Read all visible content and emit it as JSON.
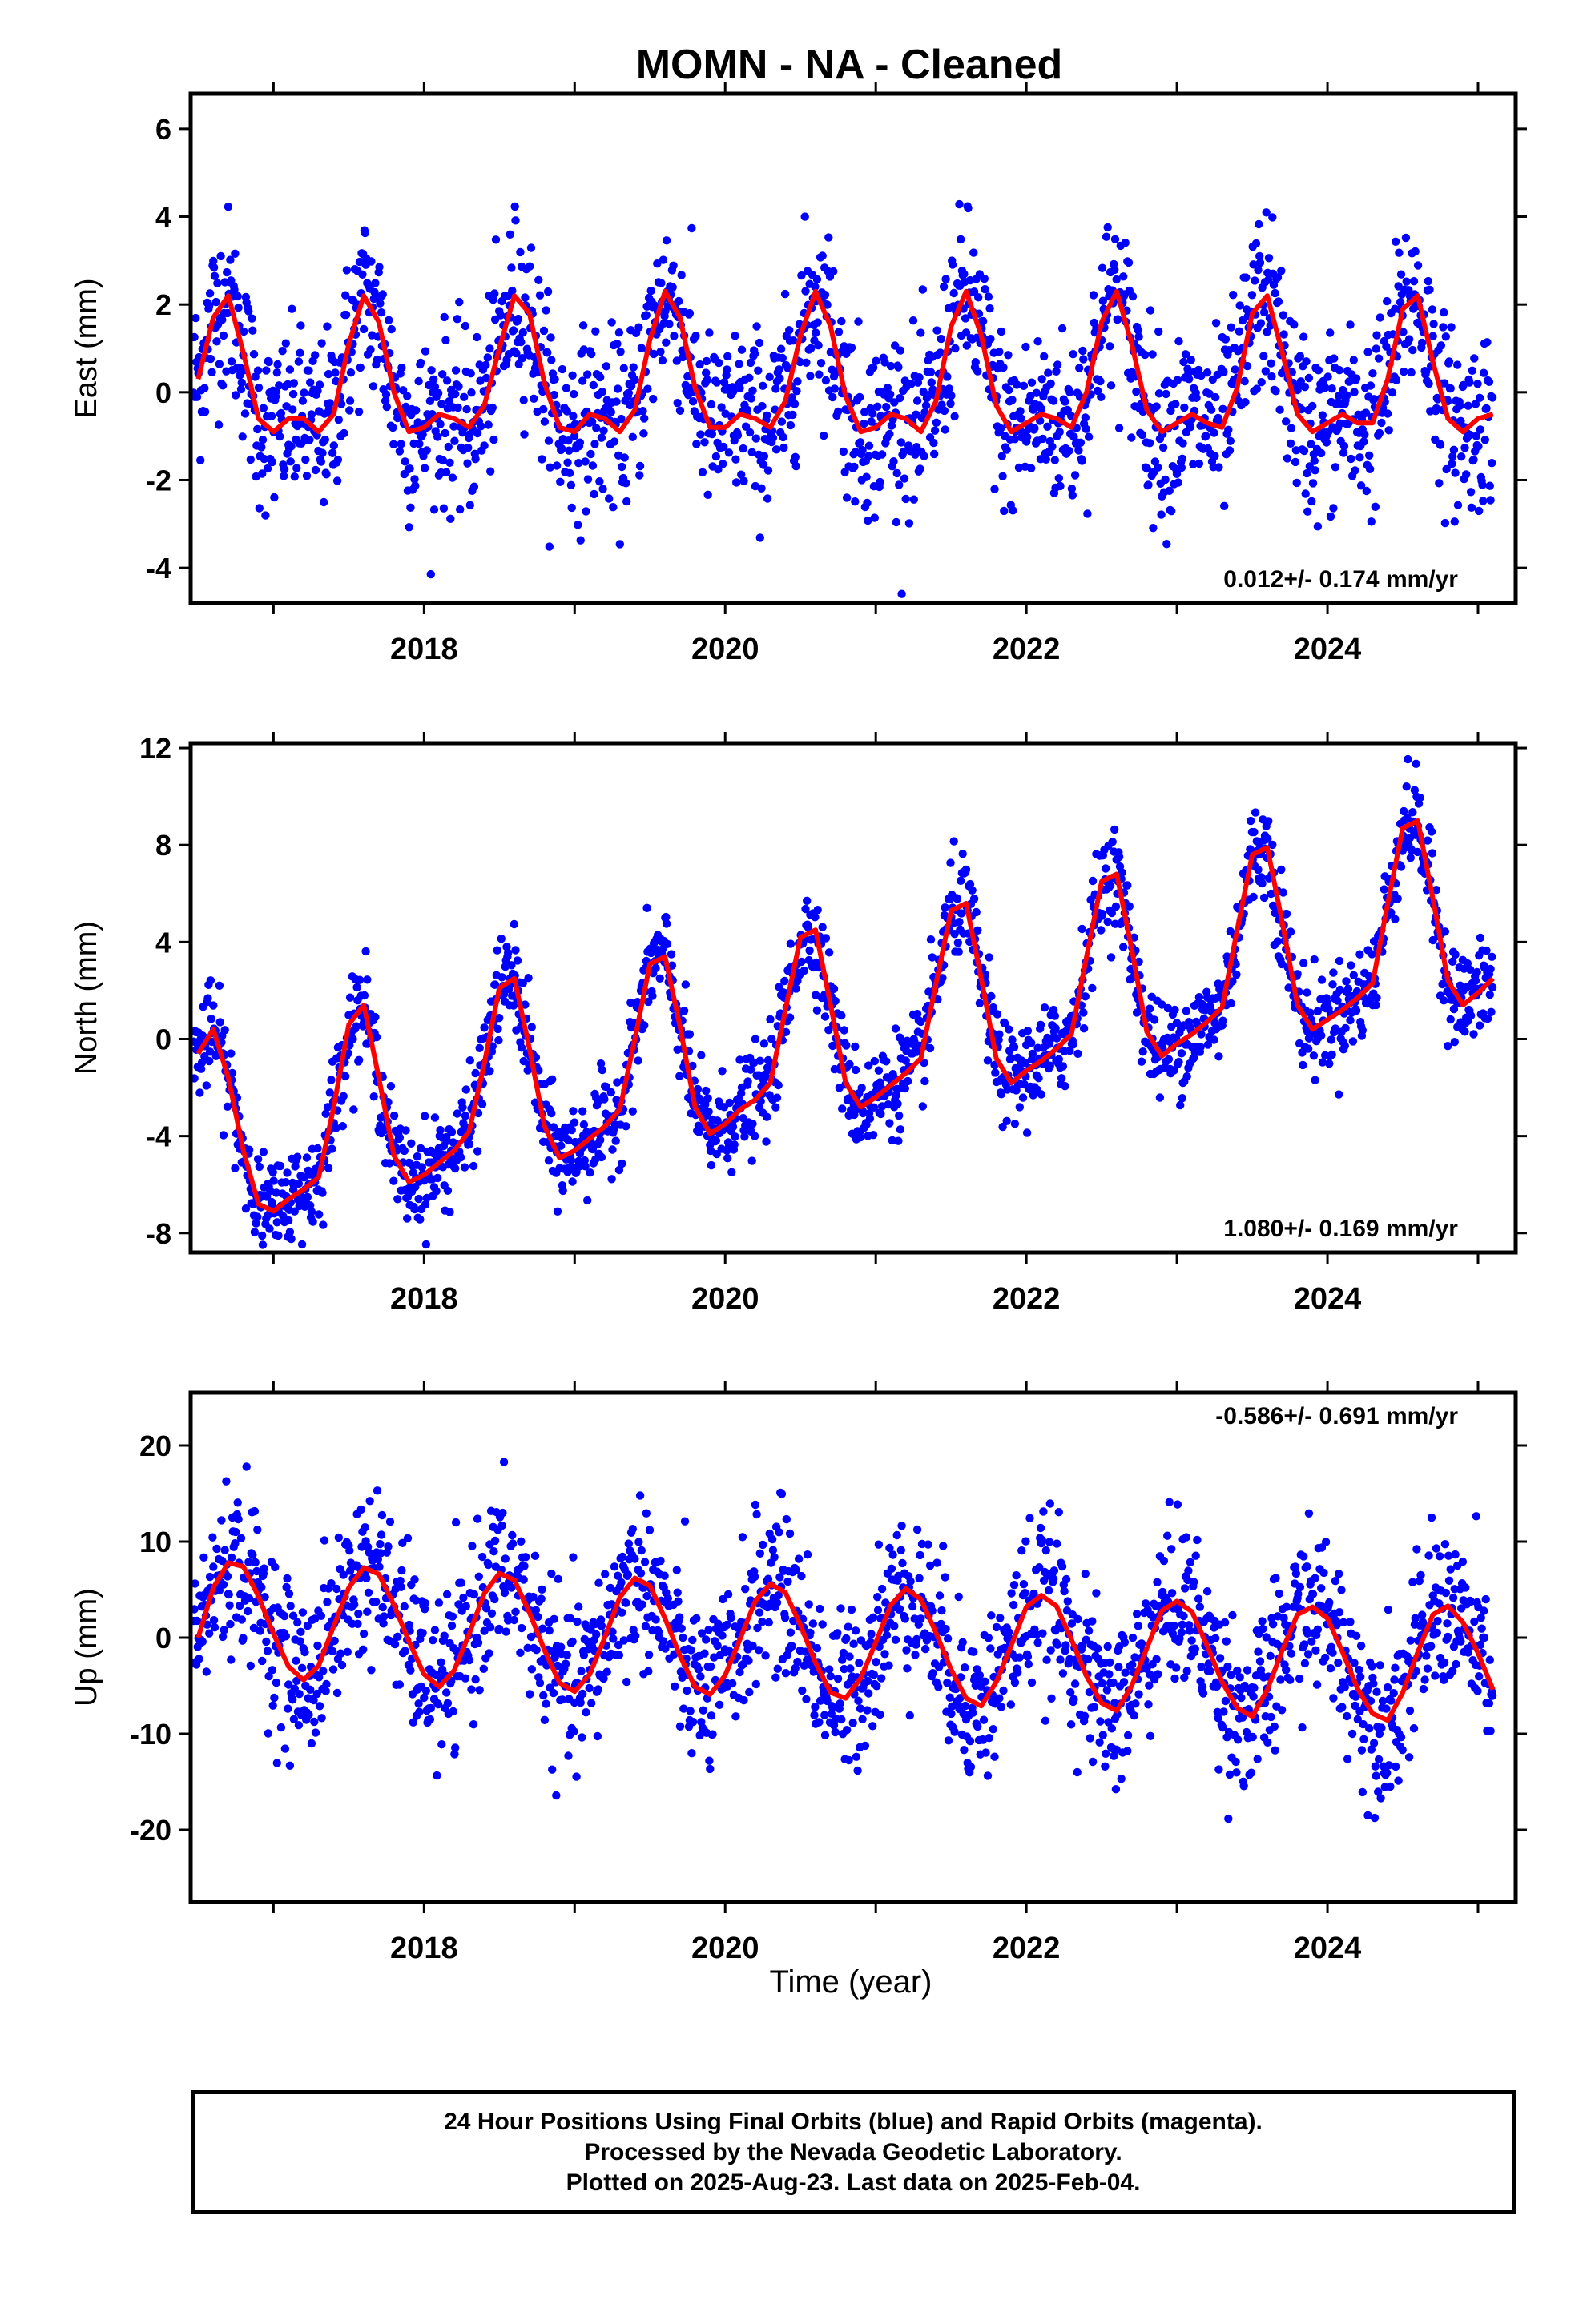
{
  "title": "MOMN  - NA - Cleaned",
  "xlabel": "Time (year)",
  "footer": {
    "line1": "24 Hour Positions Using Final Orbits (blue) and Rapid Orbits (magenta).",
    "line2": "Processed by the Nevada Geodetic Laboratory.",
    "line3": "Plotted on 2025-Aug-23. Last data on 2025-Feb-04."
  },
  "colors": {
    "points": "#0000ff",
    "model": "#ff0000",
    "frame": "#000000"
  },
  "chart_data": [
    {
      "type": "scatter",
      "component": "east",
      "ylabel": "East (mm)",
      "rate_label": "0.012+/- 0.174 mm/yr",
      "xlim": [
        2016.45,
        2025.25
      ],
      "ylim": [
        -4.8,
        6.8
      ],
      "yticks": [
        -4,
        -2,
        0,
        2,
        4,
        6
      ],
      "xticks": [
        "2018",
        "2020",
        "2022",
        "2024"
      ],
      "series": [
        {
          "x": [
            2016.5,
            2016.6,
            2016.7,
            2016.8,
            2016.9,
            2017.0,
            2017.1,
            2017.2,
            2017.3,
            2017.4,
            2017.5,
            2017.6,
            2017.7,
            2017.8,
            2017.9,
            2018.0,
            2018.1,
            2018.2,
            2018.3,
            2018.4,
            2018.5,
            2018.6,
            2018.7,
            2018.8,
            2018.9,
            2019.0,
            2019.1,
            2019.2,
            2019.3,
            2019.4,
            2019.5,
            2019.6,
            2019.7,
            2019.8,
            2019.9,
            2020.0,
            2020.1,
            2020.2,
            2020.3,
            2020.4,
            2020.5,
            2020.6,
            2020.7,
            2020.8,
            2020.9,
            2021.0,
            2021.1,
            2021.2,
            2021.3,
            2021.4,
            2021.5,
            2021.6,
            2021.7,
            2021.8,
            2021.9,
            2022.0,
            2022.1,
            2022.2,
            2022.3,
            2022.4,
            2022.5,
            2022.6,
            2022.7,
            2022.8,
            2022.9,
            2023.0,
            2023.1,
            2023.2,
            2023.3,
            2023.4,
            2023.5,
            2023.6,
            2023.7,
            2023.8,
            2023.9,
            2024.0,
            2024.1,
            2024.2,
            2024.3,
            2024.4,
            2024.5,
            2024.6,
            2024.7,
            2024.8,
            2024.9,
            2025.0,
            2025.1
          ],
          "y": [
            0.3,
            1.7,
            2.2,
            0.9,
            -0.6,
            -0.9,
            -0.6,
            -0.6,
            -0.9,
            -0.5,
            1.1,
            2.2,
            1.6,
            0.0,
            -0.9,
            -0.8,
            -0.5,
            -0.6,
            -0.8,
            -0.3,
            1.0,
            2.2,
            1.8,
            0.2,
            -0.8,
            -0.9,
            -0.5,
            -0.6,
            -0.9,
            -0.4,
            1.2,
            2.3,
            1.7,
            0.1,
            -0.8,
            -0.8,
            -0.5,
            -0.6,
            -0.8,
            -0.2,
            1.3,
            2.3,
            1.5,
            -0.1,
            -0.9,
            -0.8,
            -0.5,
            -0.6,
            -0.9,
            -0.2,
            1.5,
            2.3,
            1.3,
            -0.3,
            -0.9,
            -0.7,
            -0.5,
            -0.6,
            -0.8,
            0.0,
            1.6,
            2.3,
            1.1,
            -0.4,
            -0.9,
            -0.7,
            -0.5,
            -0.7,
            -0.8,
            0.1,
            1.8,
            2.2,
            0.9,
            -0.5,
            -0.9,
            -0.7,
            -0.5,
            -0.7,
            -0.7,
            0.3,
            1.9,
            2.2,
            0.7,
            -0.6,
            -0.9,
            -0.6,
            -0.5
          ]
        }
      ]
    },
    {
      "type": "scatter",
      "component": "north",
      "ylabel": "North (mm)",
      "rate_label": "1.080+/- 0.169 mm/yr",
      "xlim": [
        2016.45,
        2025.25
      ],
      "ylim": [
        -8.8,
        12.2
      ],
      "yticks": [
        -8,
        -4,
        0,
        4,
        8,
        12
      ],
      "xticks": [
        "2018",
        "2020",
        "2022",
        "2024"
      ],
      "series": [
        {
          "x": [
            2016.5,
            2016.6,
            2016.7,
            2016.8,
            2016.9,
            2017.0,
            2017.1,
            2017.2,
            2017.3,
            2017.4,
            2017.5,
            2017.6,
            2017.7,
            2017.8,
            2017.9,
            2018.0,
            2018.1,
            2018.2,
            2018.3,
            2018.4,
            2018.5,
            2018.6,
            2018.7,
            2018.8,
            2018.9,
            2019.0,
            2019.1,
            2019.2,
            2019.3,
            2019.4,
            2019.5,
            2019.6,
            2019.7,
            2019.8,
            2019.9,
            2020.0,
            2020.1,
            2020.2,
            2020.3,
            2020.4,
            2020.5,
            2020.6,
            2020.7,
            2020.8,
            2020.9,
            2021.0,
            2021.1,
            2021.2,
            2021.3,
            2021.4,
            2021.5,
            2021.6,
            2021.7,
            2021.8,
            2021.9,
            2022.0,
            2022.1,
            2022.2,
            2022.3,
            2022.4,
            2022.5,
            2022.6,
            2022.7,
            2022.8,
            2022.9,
            2023.0,
            2023.1,
            2023.2,
            2023.3,
            2023.4,
            2023.5,
            2023.6,
            2023.7,
            2023.8,
            2023.9,
            2024.0,
            2024.1,
            2024.2,
            2024.3,
            2024.4,
            2024.5,
            2024.6,
            2024.7,
            2024.8,
            2024.9,
            2025.0,
            2025.1
          ],
          "y": [
            -0.6,
            0.4,
            -1.6,
            -4.6,
            -6.8,
            -7.1,
            -6.6,
            -6.2,
            -5.7,
            -2.8,
            0.6,
            1.4,
            -1.6,
            -4.8,
            -5.9,
            -5.6,
            -5.1,
            -4.6,
            -3.8,
            -1.0,
            2.1,
            2.5,
            -0.4,
            -3.6,
            -4.9,
            -4.6,
            -4.1,
            -3.6,
            -2.9,
            0.0,
            3.1,
            3.4,
            0.5,
            -2.8,
            -3.9,
            -3.5,
            -2.9,
            -2.5,
            -1.8,
            1.2,
            4.2,
            4.5,
            1.4,
            -1.8,
            -2.8,
            -2.4,
            -1.9,
            -1.4,
            -0.8,
            2.3,
            5.3,
            5.6,
            2.5,
            -0.8,
            -1.8,
            -1.3,
            -0.9,
            -0.4,
            0.2,
            3.4,
            6.5,
            6.8,
            3.7,
            0.3,
            -0.7,
            -0.2,
            0.2,
            0.7,
            1.3,
            4.5,
            7.6,
            7.9,
            4.8,
            1.4,
            0.4,
            0.8,
            1.2,
            1.7,
            2.3,
            5.6,
            8.7,
            9.0,
            5.8,
            2.4,
            1.4,
            1.9,
            2.5
          ]
        }
      ]
    },
    {
      "type": "scatter",
      "component": "up",
      "ylabel": "Up (mm)",
      "rate_label": "-0.586+/- 0.691 mm/yr",
      "xlim": [
        2016.45,
        2025.25
      ],
      "ylim": [
        -27.5,
        25.5
      ],
      "yticks": [
        -20,
        -10,
        0,
        10,
        20
      ],
      "xticks": [
        "2018",
        "2020",
        "2022",
        "2024"
      ],
      "series": [
        {
          "x": [
            2016.5,
            2016.6,
            2016.7,
            2016.8,
            2016.9,
            2017.0,
            2017.1,
            2017.2,
            2017.3,
            2017.4,
            2017.5,
            2017.6,
            2017.7,
            2017.8,
            2017.9,
            2018.0,
            2018.1,
            2018.2,
            2018.3,
            2018.4,
            2018.5,
            2018.6,
            2018.7,
            2018.8,
            2018.9,
            2019.0,
            2019.1,
            2019.2,
            2019.3,
            2019.4,
            2019.5,
            2019.6,
            2019.7,
            2019.8,
            2019.9,
            2020.0,
            2020.1,
            2020.2,
            2020.3,
            2020.4,
            2020.5,
            2020.6,
            2020.7,
            2020.8,
            2020.9,
            2021.0,
            2021.1,
            2021.2,
            2021.3,
            2021.4,
            2021.5,
            2021.6,
            2021.7,
            2021.8,
            2021.9,
            2022.0,
            2022.1,
            2022.2,
            2022.3,
            2022.4,
            2022.5,
            2022.6,
            2022.7,
            2022.8,
            2022.9,
            2023.0,
            2023.1,
            2023.2,
            2023.3,
            2023.4,
            2023.5,
            2023.6,
            2023.7,
            2023.8,
            2023.9,
            2024.0,
            2024.1,
            2024.2,
            2024.3,
            2024.4,
            2024.5,
            2024.6,
            2024.7,
            2024.8,
            2024.9,
            2025.0,
            2025.1
          ],
          "y": [
            0.0,
            5.2,
            7.8,
            7.4,
            4.3,
            0.4,
            -3.0,
            -4.4,
            -2.9,
            1.2,
            5.2,
            7.3,
            6.6,
            3.4,
            -0.4,
            -3.8,
            -5.1,
            -3.4,
            0.4,
            4.6,
            6.7,
            6.0,
            2.6,
            -1.3,
            -4.7,
            -5.6,
            -3.8,
            0.0,
            4.2,
            6.2,
            5.4,
            2.0,
            -1.9,
            -5.1,
            -5.9,
            -3.9,
            -0.1,
            3.8,
            5.6,
            4.7,
            1.3,
            -2.6,
            -5.7,
            -6.3,
            -4.2,
            -0.5,
            3.4,
            5.1,
            4.0,
            0.5,
            -3.3,
            -6.3,
            -7.1,
            -4.6,
            -0.8,
            3.2,
            4.4,
            3.3,
            -0.2,
            -4.0,
            -6.8,
            -7.6,
            -5.0,
            -1.1,
            2.8,
            3.8,
            2.7,
            -0.8,
            -4.6,
            -7.3,
            -8.2,
            -5.4,
            -1.3,
            2.4,
            3.2,
            2.0,
            -1.5,
            -5.3,
            -7.9,
            -8.6,
            -5.7,
            -1.5,
            2.4,
            3.3,
            1.6,
            -1.6,
            -5.4
          ]
        }
      ]
    }
  ]
}
